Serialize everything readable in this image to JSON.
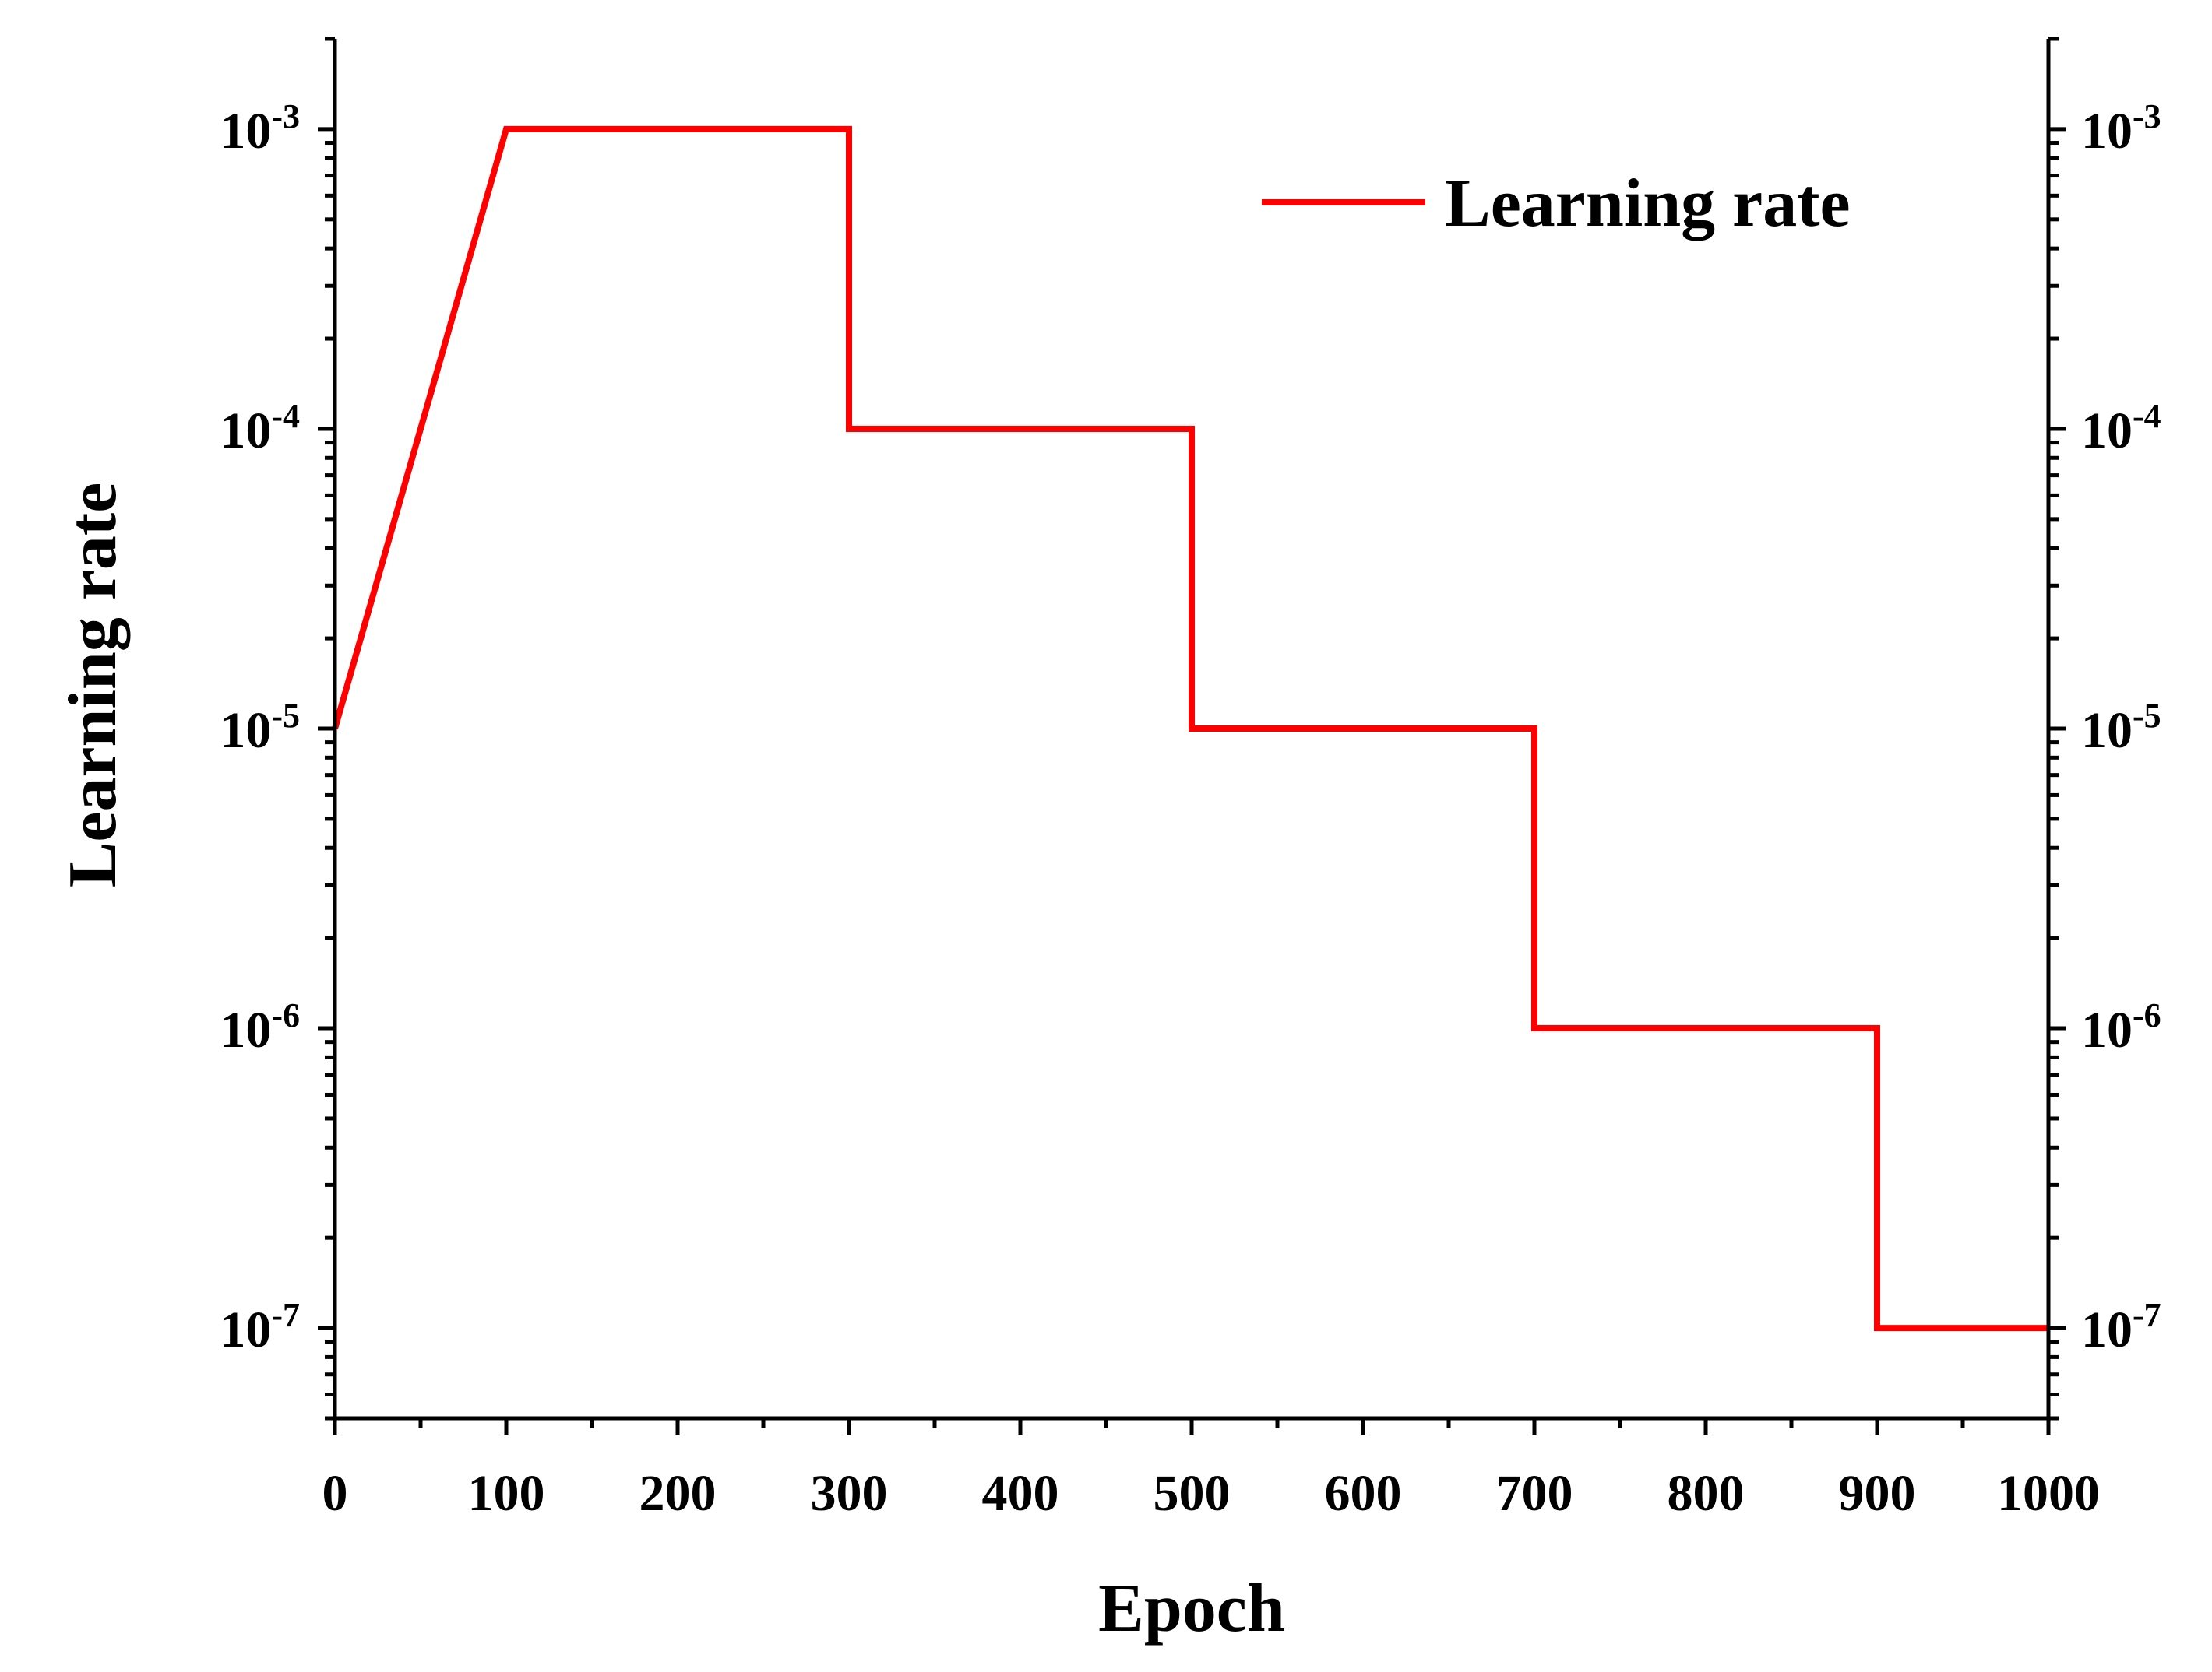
{
  "chart_data": {
    "type": "line",
    "title": "",
    "xlabel": "Epoch",
    "ylabel": "Learning rate",
    "xlim": [
      0,
      1000
    ],
    "ylim": [
      5e-08,
      0.002
    ],
    "y_scale": "log",
    "right_axis_mirror": true,
    "grid": false,
    "legend_position": "top-right",
    "x_ticks": [
      "0",
      "100",
      "200",
      "300",
      "400",
      "500",
      "600",
      "700",
      "800",
      "900",
      "1000"
    ],
    "y_ticks": [
      {
        "base": "10",
        "exp": "-7",
        "value": 1e-07
      },
      {
        "base": "10",
        "exp": "-6",
        "value": 1e-06
      },
      {
        "base": "10",
        "exp": "-5",
        "value": 1e-05
      },
      {
        "base": "10",
        "exp": "-4",
        "value": 0.0001
      },
      {
        "base": "10",
        "exp": "-3",
        "value": 0.001
      }
    ],
    "series": [
      {
        "name": "Learning rate",
        "color": "#ff0000",
        "x": [
          0,
          100,
          300,
          300,
          500,
          500,
          700,
          700,
          900,
          900,
          1000
        ],
        "y": [
          1e-05,
          0.001,
          0.001,
          0.0001,
          0.0001,
          1e-05,
          1e-05,
          1e-06,
          1e-06,
          1e-07,
          1e-07
        ]
      }
    ]
  }
}
